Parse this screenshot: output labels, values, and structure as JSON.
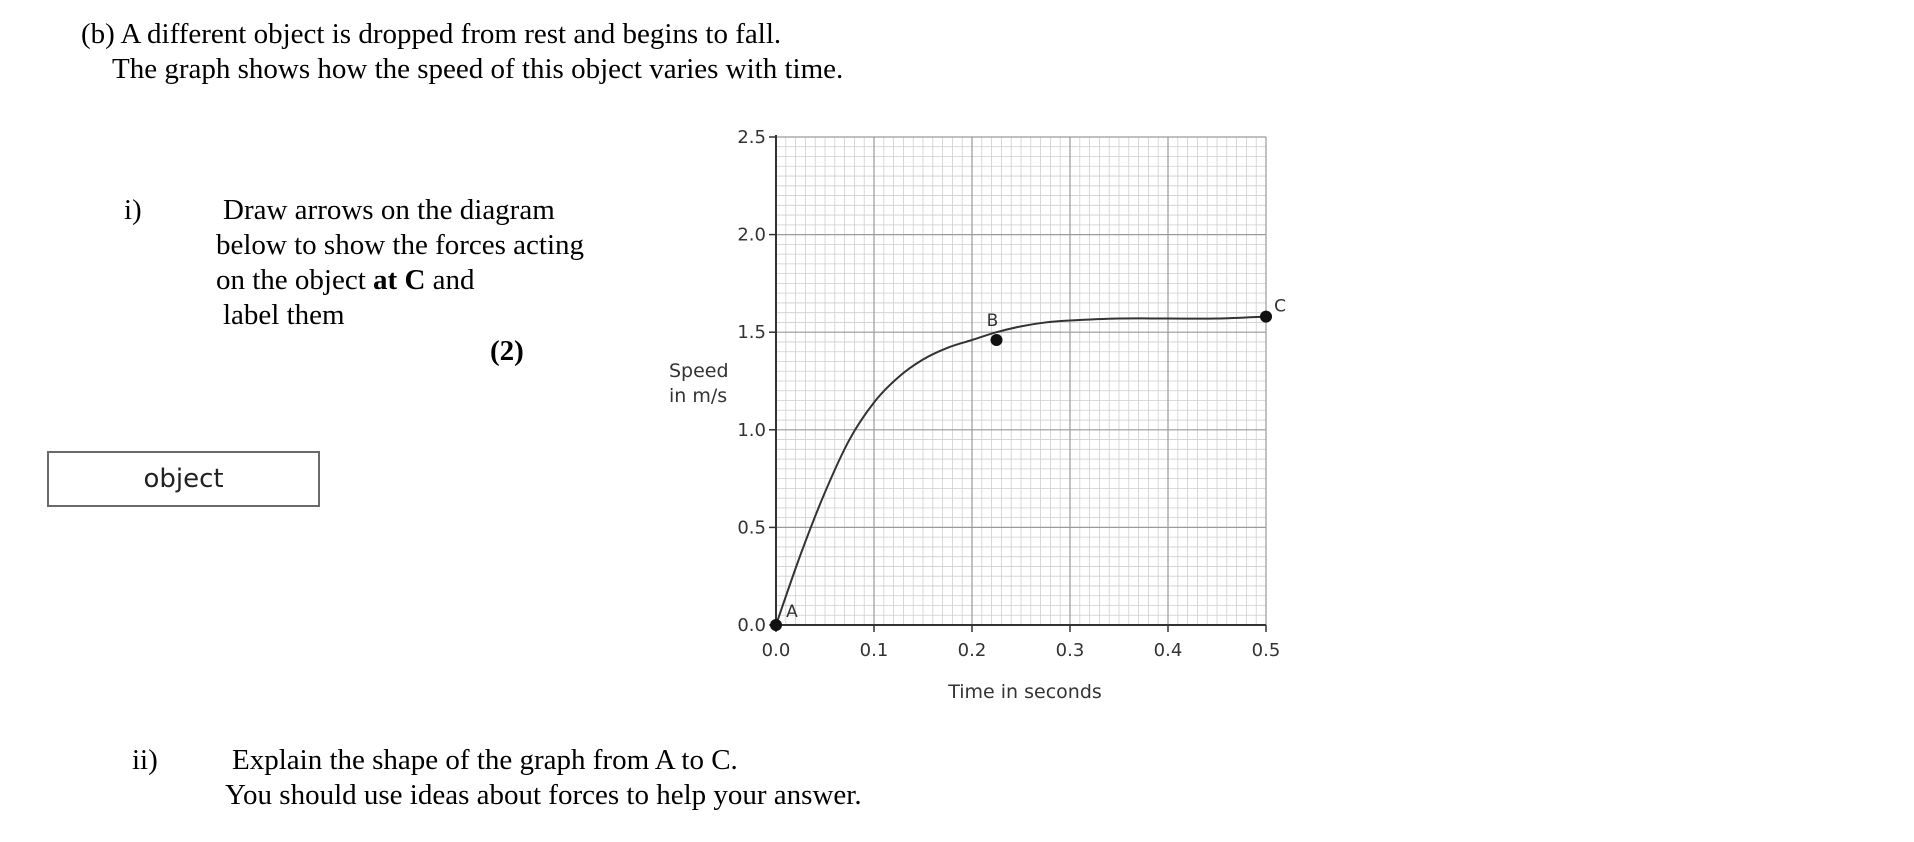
{
  "question": {
    "intro_line1": "(b) A different object is dropped from rest and begins to fall.",
    "intro_line2": "The graph shows how the speed of  this object varies with time.",
    "part_i": {
      "number": "i)",
      "line1": "Draw arrows on the diagram",
      "line2": "below to show the forces acting",
      "line3_pre": "on the object ",
      "line3_bold": "at C",
      "line3_post": " and",
      "line4": "label them",
      "marks": "(2)"
    },
    "object_label": "object",
    "part_ii": {
      "number": "ii)",
      "line1": "Explain the shape of the graph from A to C.",
      "line2": "You should use ideas about forces to help your answer."
    }
  },
  "chart_data": {
    "type": "line",
    "xlabel": "Time in seconds",
    "ylabel_line1": "Speed",
    "ylabel_line2": "in m/s",
    "xlim": [
      0,
      0.5
    ],
    "ylim": [
      0,
      2.5
    ],
    "x_ticks": [
      "0.0",
      "0.1",
      "0.2",
      "0.3",
      "0.4",
      "0.5"
    ],
    "y_ticks": [
      "0.0",
      "0.5",
      "1.0",
      "1.5",
      "2.0",
      "2.5"
    ],
    "grid": true,
    "series": [
      {
        "x": [
          0,
          0.025,
          0.05,
          0.075,
          0.1,
          0.125,
          0.15,
          0.175,
          0.2,
          0.225,
          0.25,
          0.275,
          0.3,
          0.35,
          0.4,
          0.45,
          0.5
        ],
        "y": [
          0,
          0.36,
          0.68,
          0.95,
          1.14,
          1.27,
          1.36,
          1.42,
          1.46,
          1.5,
          1.53,
          1.55,
          1.56,
          1.57,
          1.57,
          1.57,
          1.58
        ]
      }
    ],
    "points": [
      {
        "label": "A",
        "x": 0,
        "y": 0
      },
      {
        "label": "B",
        "x": 0.225,
        "y": 1.46
      },
      {
        "label": "C",
        "x": 0.5,
        "y": 1.58
      }
    ]
  }
}
